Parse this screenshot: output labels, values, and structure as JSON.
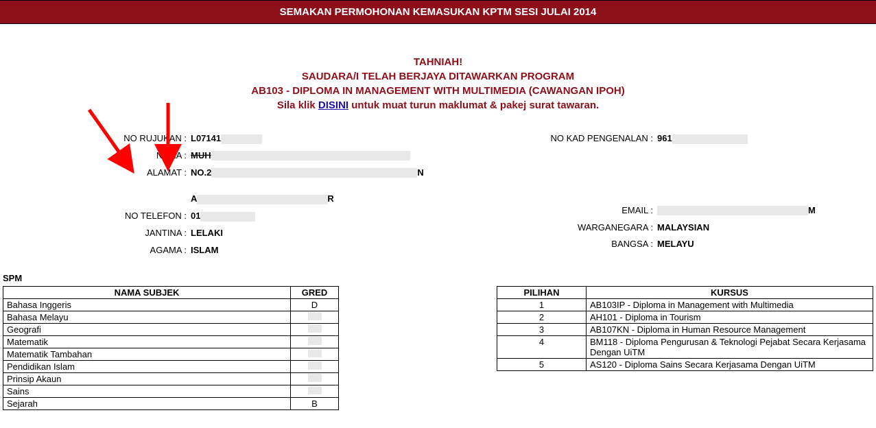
{
  "header": {
    "title": "SEMAKAN PERMOHONAN KEMASUKAN KPTM SESI JULAI 2014"
  },
  "congrats": {
    "line1": "TAHNIAH!",
    "line2": "SAUDARA/I TELAH BERJAYA DITAWARKAN PROGRAM",
    "line3": "AB103 - DIPLOMA IN MANAGEMENT WITH MULTIMEDIA (CAWANGAN IPOH)",
    "line4_prefix": "Sila klik ",
    "line4_link": "DISINI",
    "line4_suffix": " untuk muat turun maklumat & pakej surat tawaran."
  },
  "labels": {
    "no_rujukan": "NO RUJUKAN :",
    "no_kad": "NO KAD PENGENALAN :",
    "nama": "NAMA :",
    "alamat": "ALAMAT :",
    "no_telefon": "NO TELEFON :",
    "email": "EMAIL :",
    "jantina": "JANTINA :",
    "warganegara": "WARGANEGARA :",
    "agama": "AGAMA :",
    "bangsa": "BANGSA :",
    "spm": "SPM",
    "nama_subjek": "NAMA SUBJEK",
    "gred": "GRED",
    "pilihan": "PILIHAN",
    "kursus": "KURSUS"
  },
  "info": {
    "no_rujukan_prefix": "L07141",
    "no_kad_prefix": "961",
    "nama_prefix": "MUH",
    "alamat_prefix": "NO.2",
    "alamat_line2_prefix": "A",
    "alamat_line2_suffix": "R",
    "no_telefon_prefix": "01",
    "jantina": "LELAKI",
    "warganegara": "MALAYSIAN",
    "agama": "ISLAM",
    "bangsa": "MELAYU",
    "alamat_suffix": "N",
    "email_suffix": "M"
  },
  "subjects": [
    {
      "name": "Bahasa Inggeris",
      "grade": "D"
    },
    {
      "name": "Bahasa Melayu",
      "grade": ""
    },
    {
      "name": "Geografi",
      "grade": ""
    },
    {
      "name": "Matematik",
      "grade": ""
    },
    {
      "name": "Matematik Tambahan",
      "grade": ""
    },
    {
      "name": "Pendidikan Islam",
      "grade": ""
    },
    {
      "name": "Prinsip Akaun",
      "grade": ""
    },
    {
      "name": "Sains",
      "grade": ""
    },
    {
      "name": "Sejarah",
      "grade": "B"
    }
  ],
  "choices": [
    {
      "n": "1",
      "course": "AB103IP - Diploma in Management with Multimedia"
    },
    {
      "n": "2",
      "course": "AH101 - Diploma in Tourism"
    },
    {
      "n": "3",
      "course": "AB107KN - Diploma in Human Resource Management"
    },
    {
      "n": "4",
      "course": "BM118 - Diploma Pengurusan & Teknologi Pejabat Secara Kerjasama Dengan UiTM"
    },
    {
      "n": "5",
      "course": "AS120 - Diploma Sains Secara Kerjasama Dengan UiTM"
    }
  ],
  "colors": {
    "brand": "#8c0f1a",
    "arrow": "#ff0000",
    "link": "#1a0dab"
  }
}
